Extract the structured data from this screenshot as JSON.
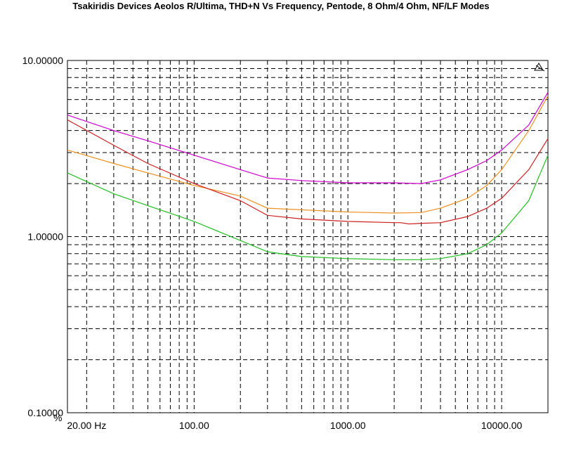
{
  "chart_data": {
    "type": "line",
    "title": "Tsakiridis Devices Aeolos R/Ultima, THD+N Vs Frequency, Pentode, 8 Ohm/4 Ohm,  NF/LF Modes",
    "xlabel": "",
    "ylabel": "%",
    "x_scale": "log",
    "y_scale": "log",
    "xlim": [
      15,
      20000
    ],
    "ylim": [
      0.1,
      10
    ],
    "x_ticks": [
      "20.00 Hz",
      "100.00",
      "1000.00",
      "10000.00"
    ],
    "y_ticks": [
      "10.00000",
      "1.00000",
      "0.10000"
    ],
    "grid": true,
    "series": [
      {
        "color": "#d000d0",
        "x": [
          15,
          30,
          50,
          100,
          200,
          300,
          500,
          1000,
          2000,
          3000,
          4000,
          6000,
          8000,
          10000,
          15000,
          20000
        ],
        "y": [
          4.9,
          4.0,
          3.5,
          2.9,
          2.4,
          2.15,
          2.08,
          2.02,
          2.02,
          2.0,
          2.1,
          2.4,
          2.7,
          3.1,
          4.3,
          6.6
        ]
      },
      {
        "color": "#f09020",
        "x": [
          15,
          30,
          50,
          100,
          200,
          300,
          500,
          1000,
          2000,
          3000,
          4000,
          6000,
          8000,
          10000,
          15000,
          20000
        ],
        "y": [
          3.1,
          2.6,
          2.3,
          1.95,
          1.7,
          1.45,
          1.42,
          1.38,
          1.36,
          1.37,
          1.45,
          1.65,
          1.95,
          2.4,
          4.0,
          6.3
        ]
      },
      {
        "color": "#d02020",
        "x": [
          15,
          30,
          50,
          100,
          200,
          300,
          500,
          1000,
          2000,
          2200,
          2500,
          3000,
          4000,
          6000,
          8000,
          10000,
          15000,
          20000
        ],
        "y": [
          4.6,
          3.3,
          2.6,
          2.0,
          1.6,
          1.32,
          1.26,
          1.22,
          1.2,
          1.2,
          1.18,
          1.19,
          1.2,
          1.3,
          1.45,
          1.65,
          2.4,
          3.6
        ]
      },
      {
        "color": "#20c020",
        "x": [
          15,
          30,
          50,
          100,
          200,
          300,
          500,
          1000,
          2000,
          3000,
          4000,
          6000,
          8000,
          10000,
          15000,
          20000
        ],
        "y": [
          2.3,
          1.75,
          1.5,
          1.22,
          0.95,
          0.82,
          0.77,
          0.75,
          0.74,
          0.74,
          0.75,
          0.8,
          0.9,
          1.05,
          1.6,
          2.9
        ]
      }
    ]
  }
}
